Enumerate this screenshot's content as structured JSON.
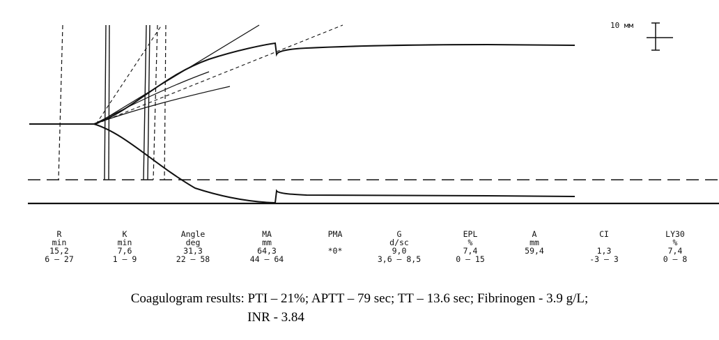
{
  "scale_label": "10 мм",
  "parameters": [
    {
      "name": "R",
      "unit": "min",
      "value": "15,2",
      "range": "6 — 27"
    },
    {
      "name": "K",
      "unit": "min",
      "value": "7,6",
      "range": "1 — 9"
    },
    {
      "name": "Angle",
      "unit": "deg",
      "value": "31,3",
      "range": "22 — 58"
    },
    {
      "name": "MA",
      "unit": "mm",
      "value": "64,3",
      "range": "44 — 64"
    },
    {
      "name": "PMA",
      "unit": "",
      "value": "*0*",
      "range": ""
    },
    {
      "name": "G",
      "unit": "d/sc",
      "value": "9,0",
      "range": "3,6 — 8,5"
    },
    {
      "name": "EPL",
      "unit": "%",
      "value": "7,4",
      "range": "0 — 15"
    },
    {
      "name": "A",
      "unit": "mm",
      "value": "59,4",
      "range": ""
    },
    {
      "name": "CI",
      "unit": "",
      "value": "1,3",
      "range": "-3 — 3"
    },
    {
      "name": "LY30",
      "unit": "%",
      "value": "7,4",
      "range": "0 — 8"
    }
  ],
  "coagulogram": {
    "line1": "Coagulogram results: PTI – 21%; APTT – 79 sec; TT – 13.6 sec; Fibrinogen - 3.9 g/L;",
    "line2": "INR - 3.84"
  },
  "chart_data": {
    "type": "line",
    "title": "",
    "xlabel": "",
    "ylabel": "",
    "series": [
      {
        "x": [
          0,
          15.2,
          20,
          24,
          28,
          32,
          36,
          40,
          44,
          48,
          52,
          56,
          60,
          64,
          68
        ],
        "y": [
          0,
          0,
          8.5,
          17,
          25,
          32,
          38,
          43.5,
          48.5,
          53,
          56.5,
          59,
          61,
          62.5,
          64.3
        ]
      }
    ],
    "reference_amplitude_mm": 64.3
  }
}
